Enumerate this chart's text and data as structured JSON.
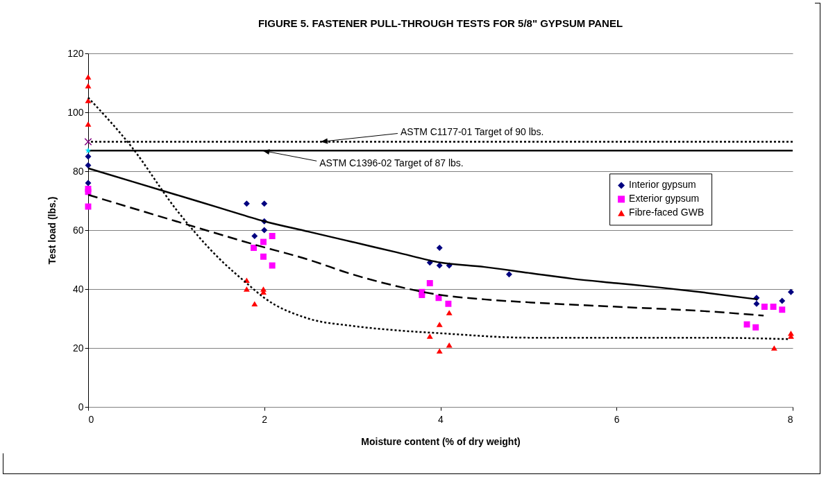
{
  "chart_data": {
    "type": "scatter",
    "title": "FIGURE 5. FASTENER PULL-THROUGH TESTS FOR 5/8\" GYPSUM PANEL",
    "xlabel": "Moisture content (% of dry weight)",
    "ylabel": "Test load (lbs.)",
    "xlim": [
      0,
      8
    ],
    "xticks": [
      0,
      2,
      4,
      6,
      8
    ],
    "ylim": [
      0,
      120
    ],
    "yticks": [
      0,
      20,
      40,
      60,
      80,
      100,
      120
    ],
    "grid": "y",
    "legend": "right",
    "series": [
      {
        "name": "Interior gypsum",
        "color": "#000080",
        "marker": "diamond",
        "x": [
          0,
          0,
          0,
          1.8,
          1.89,
          2,
          2,
          2,
          3.88,
          3.99,
          3.99,
          4.1,
          4.78,
          7.59,
          7.59,
          7.88,
          7.98
        ],
        "values": [
          85,
          82,
          76,
          69,
          58,
          69,
          63,
          60,
          49,
          54,
          48,
          48,
          45,
          37,
          35,
          36,
          39
        ]
      },
      {
        "name": "Exterior gypsum",
        "color": "#ff00ff",
        "marker": "square",
        "x": [
          0,
          0,
          0,
          1.88,
          1.99,
          1.99,
          2.09,
          2.09,
          3.79,
          3.79,
          3.88,
          3.98,
          4.09,
          7.48,
          7.58,
          7.68,
          7.78,
          7.88
        ],
        "values": [
          74,
          73,
          68,
          54,
          56,
          51,
          58,
          48,
          39,
          38,
          42,
          37,
          35,
          28,
          27,
          34,
          34,
          33
        ]
      },
      {
        "name": "Fibre-faced GWB",
        "color": "#ff0000",
        "marker": "triangle",
        "x": [
          0,
          0,
          0,
          0,
          1.8,
          1.8,
          1.89,
          1.99,
          1.99,
          3.88,
          3.99,
          3.99,
          4.1,
          4.1,
          7.79,
          7.98,
          7.98
        ],
        "values": [
          112,
          109,
          104,
          96,
          43,
          40,
          35,
          40,
          39,
          24,
          28,
          19,
          32,
          21,
          20,
          25,
          24
        ]
      },
      {
        "color": "#800080",
        "marker": "cross",
        "x": [
          0
        ],
        "values": [
          90
        ]
      },
      {
        "color": "#00e0ff",
        "marker": "star",
        "x": [
          0
        ],
        "values": [
          87
        ]
      },
      {
        "type": "line",
        "color": "#000000",
        "marker": "none",
        "line_style": "solid",
        "x": [
          0,
          0.5,
          1,
          1.5,
          2,
          2.5,
          3,
          3.5,
          4,
          4.5,
          5,
          5.5,
          6,
          6.5,
          7,
          7.6
        ],
        "values": [
          81,
          76.5,
          72,
          67.5,
          63,
          59.5,
          56,
          52.5,
          49,
          47.5,
          45.5,
          43.5,
          42,
          40.5,
          38.8,
          36.5
        ]
      },
      {
        "type": "line",
        "color": "#000000",
        "marker": "none",
        "line_style": "dashed",
        "x": [
          0,
          1,
          1.9,
          2.5,
          3,
          3.5,
          4,
          4.5,
          5,
          6,
          7,
          7.67
        ],
        "values": [
          72,
          63,
          55,
          50,
          45,
          41,
          38,
          36.5,
          35.5,
          34,
          32.5,
          31
        ]
      },
      {
        "type": "line",
        "color": "#000000",
        "marker": "none",
        "line_style": "dotted",
        "x": [
          0,
          0.5,
          1,
          1.5,
          1.8,
          2,
          2.5,
          3,
          3.5,
          4,
          5,
          6,
          7,
          7.96
        ],
        "values": [
          105,
          88,
          67,
          50,
          42,
          37,
          30,
          27.5,
          26,
          25,
          23.5,
          23.5,
          23.5,
          23
        ]
      }
    ],
    "ref_lines": [
      {
        "axis": "y",
        "value": 90,
        "color": "#000000",
        "line_style": "dotted"
      },
      {
        "axis": "y",
        "value": 87,
        "color": "#000000",
        "line_style": "solid"
      }
    ],
    "annotations": [
      {
        "text": "ASTM C1177-01 Target of 90 lbs.",
        "x": 2.64,
        "y": 90
      },
      {
        "text": "ASTM C1396-02 Target of 87 lbs.",
        "x": 1.98,
        "y": 87
      }
    ]
  }
}
